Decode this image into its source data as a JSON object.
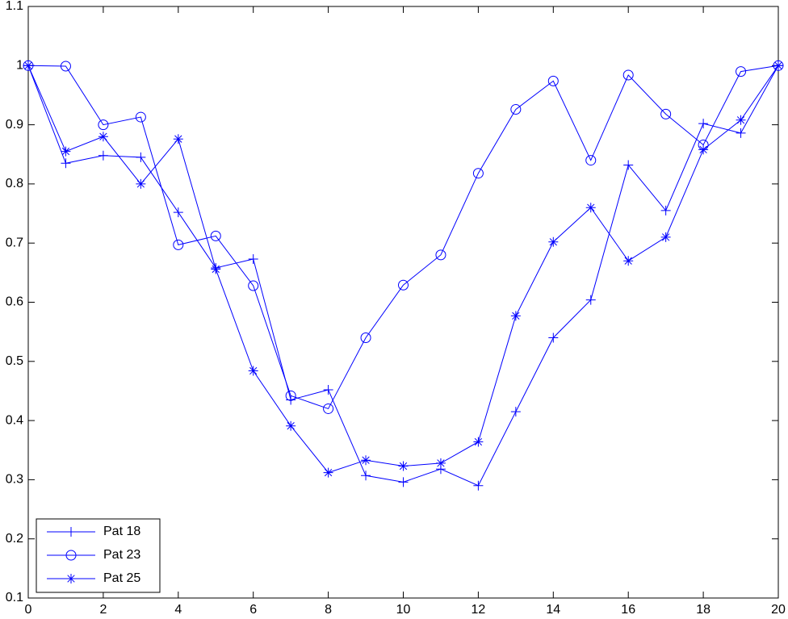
{
  "chart_data": {
    "type": "line",
    "x": [
      0,
      1,
      2,
      3,
      4,
      5,
      6,
      7,
      8,
      9,
      10,
      11,
      12,
      13,
      14,
      15,
      16,
      17,
      18,
      19,
      20
    ],
    "series": [
      {
        "name": "Pat 18",
        "color": "#0000ff",
        "marker": "+",
        "values": [
          1.0,
          0.835,
          0.848,
          0.845,
          0.752,
          0.658,
          0.673,
          0.435,
          0.452,
          0.307,
          0.296,
          0.318,
          0.29,
          0.415,
          0.54,
          0.604,
          0.832,
          0.755,
          0.902,
          0.886,
          1.0
        ]
      },
      {
        "name": "Pat 23",
        "color": "#0000ff",
        "marker": "o",
        "values": [
          1.0,
          0.999,
          0.9,
          0.913,
          0.697,
          0.712,
          0.628,
          0.442,
          0.42,
          0.54,
          0.629,
          0.68,
          0.818,
          0.926,
          0.974,
          0.84,
          0.984,
          0.918,
          0.866,
          0.99,
          1.0
        ]
      },
      {
        "name": "Pat 25",
        "color": "#0000ff",
        "marker": "*",
        "values": [
          1.0,
          0.855,
          0.88,
          0.8,
          0.876,
          0.656,
          0.484,
          0.391,
          0.312,
          0.333,
          0.323,
          0.328,
          0.364,
          0.577,
          0.702,
          0.76,
          0.67,
          0.71,
          0.858,
          0.908,
          1.0
        ]
      }
    ],
    "xlim": [
      0,
      20
    ],
    "xticks": [
      0,
      2,
      4,
      6,
      8,
      10,
      12,
      14,
      16,
      18,
      20
    ],
    "ylim": [
      0.1,
      1.1
    ],
    "yticks": [
      0.1,
      0.2,
      0.3,
      0.4,
      0.5,
      0.6,
      0.7,
      0.8,
      0.9,
      1,
      1.1
    ],
    "grid": false,
    "legend": "lower left"
  }
}
